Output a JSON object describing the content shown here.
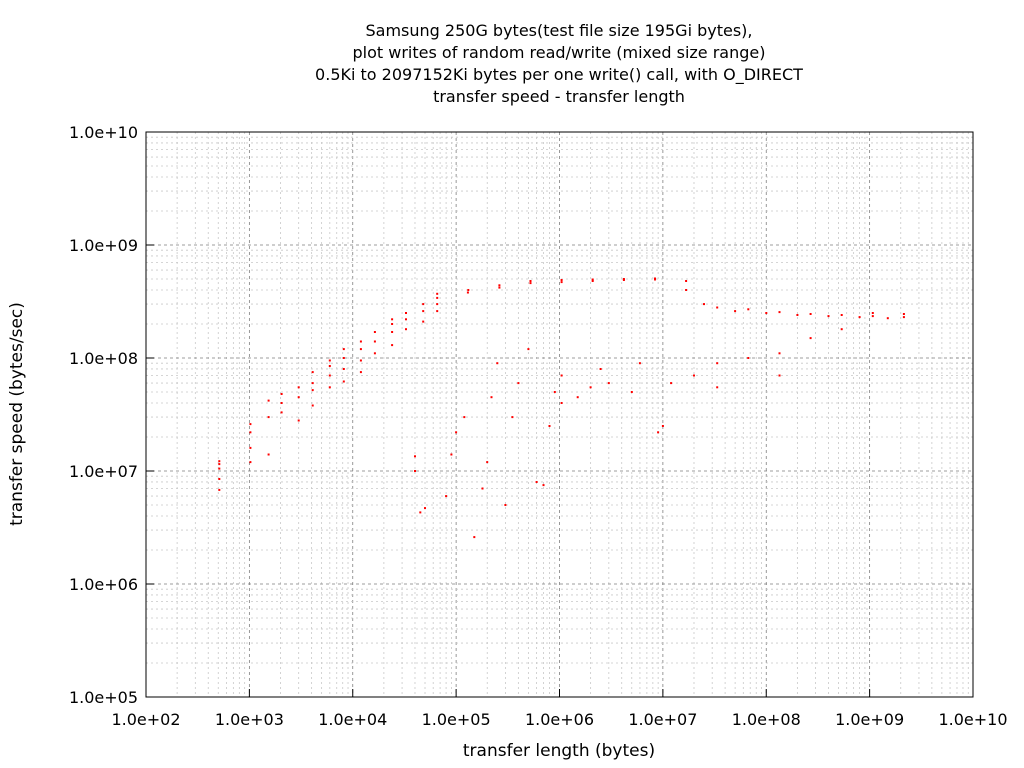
{
  "chart_data": {
    "type": "scatter",
    "title_lines": [
      "Samsung 250G bytes(test file size 195Gi bytes),",
      "plot writes of random read/write (mixed size range)",
      "0.5Ki to 2097152Ki bytes per one write() call, with O_DIRECT",
      "transfer speed - transfer length"
    ],
    "xlabel": "transfer length (bytes)",
    "ylabel": "transfer speed (bytes/sec)",
    "x_scale": "log",
    "y_scale": "log",
    "xlim": [
      100,
      10000000000
    ],
    "ylim": [
      100000,
      10000000000
    ],
    "x_ticks": [
      {
        "value": 100,
        "label": "1.0e+02"
      },
      {
        "value": 1000,
        "label": "1.0e+03"
      },
      {
        "value": 10000,
        "label": "1.0e+04"
      },
      {
        "value": 100000,
        "label": "1.0e+05"
      },
      {
        "value": 1000000,
        "label": "1.0e+06"
      },
      {
        "value": 10000000,
        "label": "1.0e+07"
      },
      {
        "value": 100000000,
        "label": "1.0e+08"
      },
      {
        "value": 1000000000,
        "label": "1.0e+09"
      },
      {
        "value": 10000000000,
        "label": "1.0e+10"
      }
    ],
    "y_ticks": [
      {
        "value": 100000,
        "label": "1.0e+05"
      },
      {
        "value": 1000000,
        "label": "1.0e+06"
      },
      {
        "value": 10000000,
        "label": "1.0e+07"
      },
      {
        "value": 100000000,
        "label": "1.0e+08"
      },
      {
        "value": 1000000000,
        "label": "1.0e+09"
      },
      {
        "value": 10000000000,
        "label": "1.0e+10"
      }
    ],
    "grid": true,
    "legend": "none",
    "point_color": "#ff0000",
    "series": [
      {
        "points": [
          [
            512,
            6800000
          ],
          [
            512,
            8500000
          ],
          [
            512,
            10500000
          ],
          [
            512,
            11500000
          ],
          [
            512,
            12200000
          ],
          [
            1024,
            12000000
          ],
          [
            1024,
            16000000
          ],
          [
            1024,
            22000000
          ],
          [
            1024,
            26000000
          ],
          [
            1536,
            14000000
          ],
          [
            1536,
            30000000
          ],
          [
            1536,
            42000000
          ],
          [
            2048,
            33000000
          ],
          [
            2048,
            40000000
          ],
          [
            2048,
            48000000
          ],
          [
            3000,
            28000000
          ],
          [
            3000,
            45000000
          ],
          [
            3000,
            55000000
          ],
          [
            4096,
            38000000
          ],
          [
            4096,
            52000000
          ],
          [
            4096,
            60000000
          ],
          [
            4096,
            75000000
          ],
          [
            6000,
            55000000
          ],
          [
            6000,
            70000000
          ],
          [
            6000,
            85000000
          ],
          [
            6000,
            95000000
          ],
          [
            8192,
            62000000
          ],
          [
            8192,
            80000000
          ],
          [
            8192,
            100000000
          ],
          [
            8192,
            120000000
          ],
          [
            12000,
            75000000
          ],
          [
            12000,
            95000000
          ],
          [
            12000,
            120000000
          ],
          [
            12000,
            140000000
          ],
          [
            16384,
            110000000
          ],
          [
            16384,
            140000000
          ],
          [
            16384,
            170000000
          ],
          [
            24000,
            130000000
          ],
          [
            24000,
            170000000
          ],
          [
            24000,
            200000000
          ],
          [
            24000,
            220000000
          ],
          [
            32768,
            180000000
          ],
          [
            32768,
            220000000
          ],
          [
            32768,
            250000000
          ],
          [
            40000,
            13500000
          ],
          [
            40000,
            10000000
          ],
          [
            45000,
            4300000
          ],
          [
            50000,
            4700000
          ],
          [
            48000,
            210000000
          ],
          [
            48000,
            260000000
          ],
          [
            48000,
            300000000
          ],
          [
            65536,
            260000000
          ],
          [
            65536,
            300000000
          ],
          [
            65536,
            340000000
          ],
          [
            65536,
            370000000
          ],
          [
            80000,
            6000000
          ],
          [
            90000,
            14000000
          ],
          [
            100000,
            22000000
          ],
          [
            120000,
            30000000
          ],
          [
            150000,
            2600000
          ],
          [
            130000,
            380000000
          ],
          [
            131072,
            400000000
          ],
          [
            180000,
            7000000
          ],
          [
            200000,
            12000000
          ],
          [
            220000,
            45000000
          ],
          [
            250000,
            90000000
          ],
          [
            262144,
            420000000
          ],
          [
            262144,
            440000000
          ],
          [
            300000,
            5000000
          ],
          [
            350000,
            30000000
          ],
          [
            400000,
            60000000
          ],
          [
            500000,
            120000000
          ],
          [
            524288,
            460000000
          ],
          [
            524288,
            480000000
          ],
          [
            600000,
            8000000
          ],
          [
            700000,
            7500000
          ],
          [
            800000,
            25000000
          ],
          [
            900000,
            50000000
          ],
          [
            1048576,
            470000000
          ],
          [
            1048576,
            490000000
          ],
          [
            1048576,
            40000000
          ],
          [
            1048576,
            70000000
          ],
          [
            1500000,
            45000000
          ],
          [
            2000000,
            55000000
          ],
          [
            2097152,
            480000000
          ],
          [
            2097152,
            495000000
          ],
          [
            2500000,
            80000000
          ],
          [
            3000000,
            60000000
          ],
          [
            4194304,
            490000000
          ],
          [
            4194304,
            500000000
          ],
          [
            5000000,
            50000000
          ],
          [
            6000000,
            90000000
          ],
          [
            8388608,
            495000000
          ],
          [
            8388608,
            505000000
          ],
          [
            9000000,
            22000000
          ],
          [
            10000000,
            25000000
          ],
          [
            12000000,
            60000000
          ],
          [
            16777216,
            480000000
          ],
          [
            16777216,
            400000000
          ],
          [
            20000000,
            70000000
          ],
          [
            25000000,
            300000000
          ],
          [
            33554432,
            280000000
          ],
          [
            33554432,
            55000000
          ],
          [
            33554432,
            90000000
          ],
          [
            50000000,
            260000000
          ],
          [
            67108864,
            270000000
          ],
          [
            67108864,
            100000000
          ],
          [
            100000000,
            250000000
          ],
          [
            134217728,
            255000000
          ],
          [
            134217728,
            110000000
          ],
          [
            134217728,
            70000000
          ],
          [
            200000000,
            240000000
          ],
          [
            268435456,
            245000000
          ],
          [
            268435456,
            150000000
          ],
          [
            400000000,
            235000000
          ],
          [
            536870912,
            240000000
          ],
          [
            536870912,
            180000000
          ],
          [
            800000000,
            230000000
          ],
          [
            1073741824,
            235000000
          ],
          [
            1073741824,
            250000000
          ],
          [
            1500000000,
            225000000
          ],
          [
            2147483648,
            230000000
          ],
          [
            2147483648,
            245000000
          ]
        ]
      }
    ]
  }
}
